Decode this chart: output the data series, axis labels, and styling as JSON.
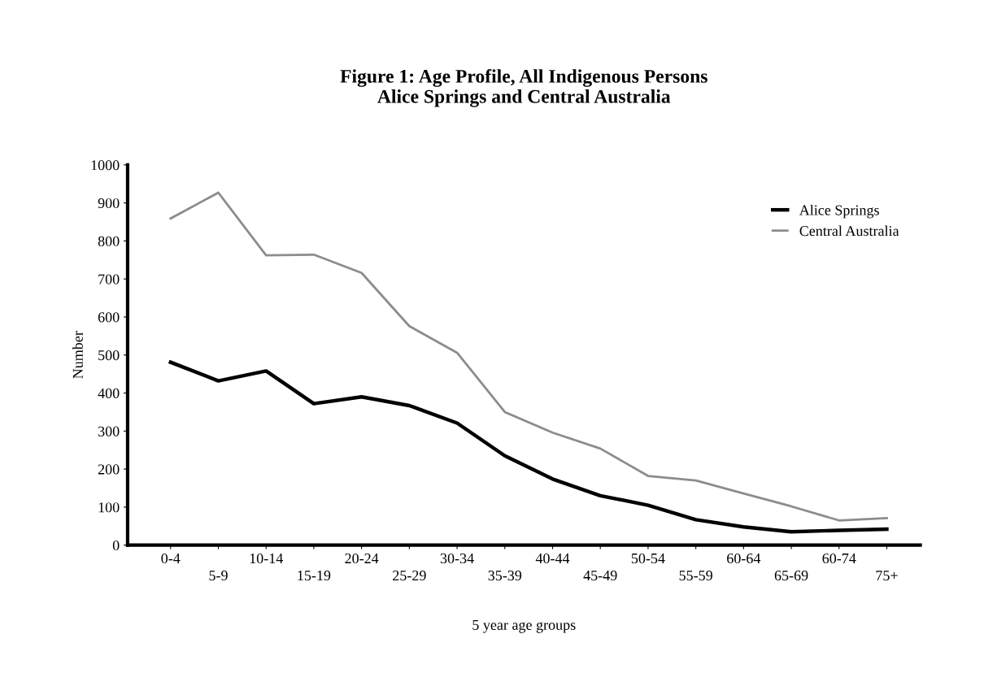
{
  "chart_data": {
    "type": "line",
    "title": "Figure 1: Age Profile, All Indigenous Persons\nAlice Springs and Central Australia",
    "xlabel": "5 year age groups",
    "ylabel": "Number",
    "categories": [
      "0-4",
      "5-9",
      "10-14",
      "15-19",
      "20-24",
      "25-29",
      "30-34",
      "35-39",
      "40-44",
      "45-49",
      "50-54",
      "55-59",
      "60-64",
      "65-69",
      "60-74",
      "75+"
    ],
    "series": [
      {
        "name": "Alice Springs",
        "color": "#000000",
        "values": [
          481,
          432,
          458,
          372,
          390,
          367,
          321,
          235,
          174,
          130,
          105,
          67,
          48,
          35,
          39,
          42
        ]
      },
      {
        "name": "Central Australia",
        "color": "#8c8c8c",
        "values": [
          859,
          927,
          762,
          764,
          716,
          576,
          506,
          350,
          296,
          254,
          182,
          170,
          136,
          102,
          65,
          71
        ]
      }
    ],
    "ylim": [
      0,
      1000
    ],
    "yticks": [
      0,
      100,
      200,
      300,
      400,
      500,
      600,
      700,
      800,
      900,
      1000
    ],
    "legend": "top right",
    "grid": false
  }
}
